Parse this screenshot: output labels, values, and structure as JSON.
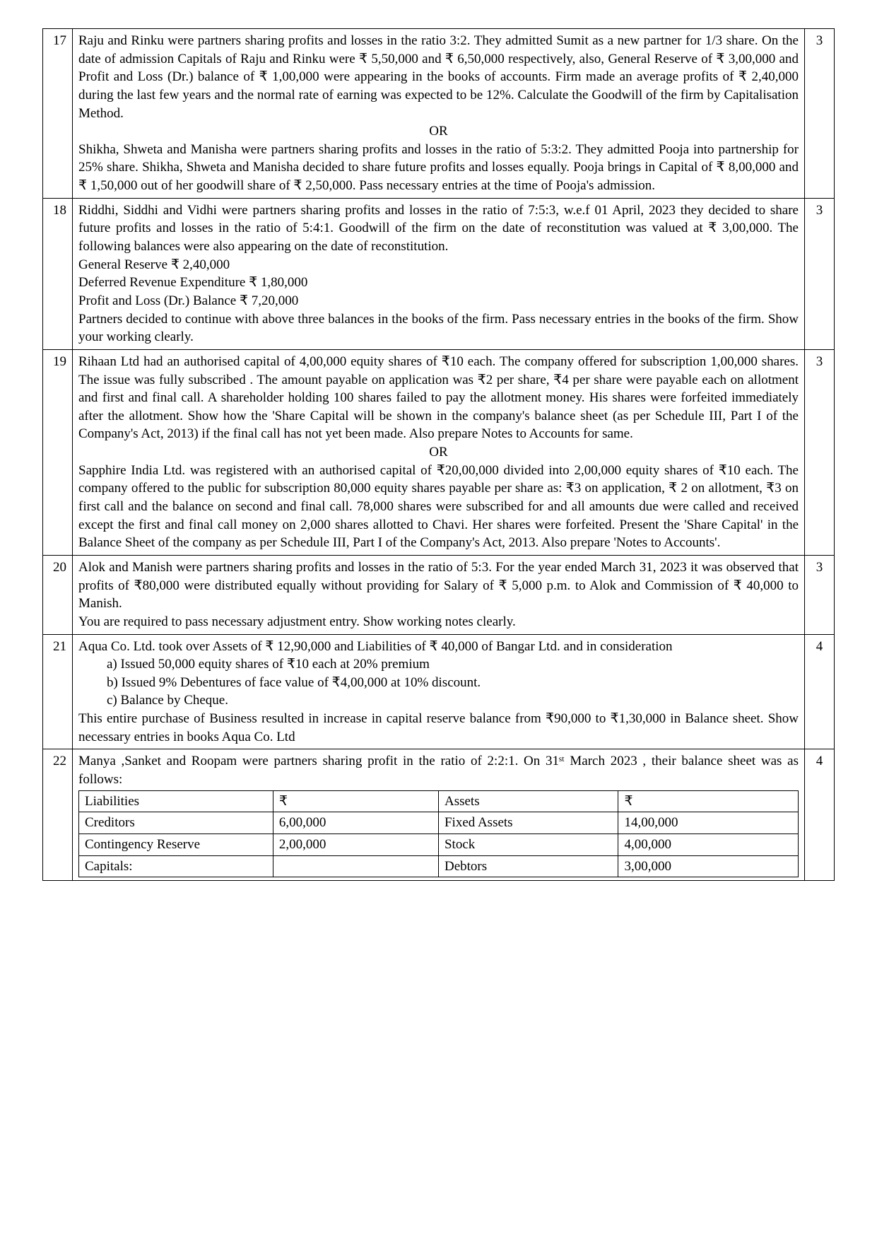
{
  "rows": [
    {
      "num": "17",
      "marks": "3",
      "paras": [
        {
          "text": "Raju and Rinku were partners sharing profits and losses in the ratio 3:2. They admitted Sumit as a new partner for 1/3 share. On the date of admission Capitals of Raju and Rinku were ₹ 5,50,000 and ₹ 6,50,000 respectively, also, General Reserve of ₹ 3,00,000 and Profit and Loss (Dr.) balance of ₹ 1,00,000 were appearing in the books of accounts. Firm made an average profits of ₹ 2,40,000 during the last few years and the normal rate of earning was expected to be 12%. Calculate the Goodwill of the firm by Capitalisation Method."
        },
        {
          "text": "OR",
          "center": true
        },
        {
          "text": "Shikha, Shweta and Manisha were partners sharing profits and losses in the ratio of 5:3:2. They admitted Pooja into partnership for 25% share. Shikha, Shweta and Manisha decided to share future profits and losses equally. Pooja brings in Capital of ₹ 8,00,000 and ₹ 1,50,000 out of her goodwill share of ₹ 2,50,000. Pass necessary entries at the time of Pooja's admission."
        }
      ]
    },
    {
      "num": "18",
      "marks": "3",
      "paras": [
        {
          "text": "Riddhi, Siddhi and Vidhi were partners sharing profits and losses in the ratio of 7:5:3, w.e.f 01 April, 2023 they decided to share future profits and losses in the ratio of 5:4:1. Goodwill of the firm on the date of reconstitution was valued at ₹ 3,00,000. The following balances were also appearing on the date of reconstitution."
        },
        {
          "text": "General Reserve ₹ 2,40,000",
          "plain": true
        },
        {
          "text": "Deferred Revenue Expenditure ₹ 1,80,000",
          "plain": true
        },
        {
          "text": "Profit and Loss (Dr.) Balance ₹ 7,20,000",
          "plain": true
        },
        {
          "text": "Partners decided to continue with above three balances in the books of the firm. Pass necessary entries in the books of the firm. Show your working clearly."
        }
      ]
    },
    {
      "num": "19",
      "marks": "3",
      "paras": [
        {
          "text": "Rihaan Ltd had an authorised capital of  4,00,000 equity shares of ₹10 each. The company offered for subscription 1,00,000 shares. The issue was fully subscribed . The amount payable  on application was ₹2 per share, ₹4  per share were payable each on allotment and first and final call. A shareholder holding 100 shares failed to pay the allotment money. His shares were forfeited immediately after the allotment. Show how the 'Share Capital will be shown in the company's balance sheet (as per Schedule III, Part I of the Company's Act, 2013) if the final call has not yet been made. Also prepare Notes to Accounts for same."
        },
        {
          "text": "OR",
          "center": true
        },
        {
          "text": "Sapphire India Ltd. was registered with an authorised capital of ₹20,00,000 divided into 2,00,000 equity shares of  ₹10 each. The company offered to the public for subscription 80,000 equity shares payable per share as: ₹3 on application, ₹ 2 on allotment, ₹3 on first call and the balance on second and final call. 78,000 shares were subscribed for and all amounts due were called and received except the first and final call money on 2,000 shares allotted to Chavi. Her shares were forfeited. Present the 'Share Capital' in the Balance Sheet of the company as per Schedule III, Part I of the Company's Act, 2013. Also prepare 'Notes to Accounts'."
        }
      ]
    },
    {
      "num": "20",
      "marks": "3",
      "paras": [
        {
          "text": "Alok and Manish were partners sharing profits and losses in the ratio of 5:3. For the year ended March 31, 2023 it was observed that profits of ₹80,000 were distributed equally without providing for Salary of ₹ 5,000 p.m. to Alok and Commission of ₹ 40,000 to Manish."
        },
        {
          "text": "You are required to pass necessary adjustment entry. Show working notes clearly.",
          "plain": true
        }
      ]
    },
    {
      "num": "21",
      "marks": "4",
      "paras": [
        {
          "text": "Aqua Co. Ltd. took over Assets of ₹ 12,90,000 and Liabilities of ₹ 40,000 of Bangar Ltd. and in consideration"
        }
      ],
      "listItems": [
        "a)  Issued 50,000 equity shares of ₹10 each at 20% premium",
        "b)  Issued  9% Debentures of face value of  ₹4,00,000 at 10% discount.",
        "c)   Balance by Cheque."
      ],
      "tail": [
        {
          "text": "This entire purchase of Business resulted in increase in capital reserve balance from ₹90,000 to ₹1,30,000 in Balance sheet. Show necessary entries in books Aqua Co. Ltd"
        }
      ]
    },
    {
      "num": "22",
      "marks": "4",
      "paras": [
        {
          "text": " Manya ,Sanket and Roopam were partners sharing profit in the ratio of 2:2:1. On 31ˢᵗ March 2023 , their balance  sheet was as follows:"
        }
      ],
      "table": {
        "header": [
          "Liabilities",
          "₹",
          "Assets",
          "₹"
        ],
        "rows": [
          [
            "Creditors",
            "6,00,000",
            "Fixed Assets",
            "14,00,000"
          ],
          [
            "Contingency Reserve",
            "2,00,000",
            "Stock",
            "4,00,000"
          ],
          [
            "Capitals:",
            "",
            "Debtors",
            "3,00,000"
          ]
        ]
      }
    }
  ]
}
